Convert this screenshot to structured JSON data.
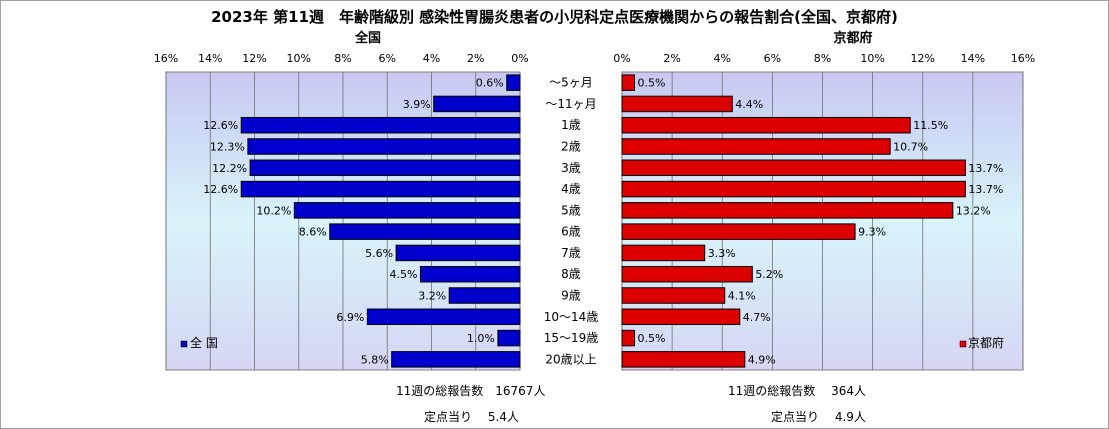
{
  "title": "2023年 第11週　年齢階級別 感染性胃腸炎患者の小児科定点医療機関からの報告割合(全国、京都府)",
  "chart_data": [
    {
      "type": "bar",
      "orientation": "horizontal",
      "direction": "right-to-left",
      "title": "全国",
      "categories": [
        "～5ヶ月",
        "～11ヶ月",
        "1歳",
        "2歳",
        "3歳",
        "4歳",
        "5歳",
        "6歳",
        "7歳",
        "8歳",
        "9歳",
        "10～14歳",
        "15～19歳",
        "20歳以上"
      ],
      "series": [
        {
          "name": "全 国",
          "color": "#0000cc",
          "values": [
            0.6,
            3.9,
            12.6,
            12.3,
            12.2,
            12.6,
            10.2,
            8.6,
            5.6,
            4.5,
            3.2,
            6.9,
            1.0,
            5.8
          ]
        }
      ],
      "value_labels": [
        "0.6%",
        "3.9%",
        "12.6%",
        "12.3%",
        "12.2%",
        "12.6%",
        "10.2%",
        "8.6%",
        "5.6%",
        "4.5%",
        "3.2%",
        "6.9%",
        "1.0%",
        "5.8%"
      ],
      "xlim": [
        0,
        16
      ],
      "ticks": [
        16,
        14,
        12,
        10,
        8,
        6,
        4,
        2,
        0
      ],
      "tick_labels": [
        "16%",
        "14%",
        "12%",
        "10%",
        "8%",
        "6%",
        "4%",
        "2%",
        "0%"
      ],
      "grid": true,
      "legend_position": "bottom-left",
      "legend_label": "全 国"
    },
    {
      "type": "bar",
      "orientation": "horizontal",
      "direction": "left-to-right",
      "title": "京都府",
      "categories": [
        "～5ヶ月",
        "～11ヶ月",
        "1歳",
        "2歳",
        "3歳",
        "4歳",
        "5歳",
        "6歳",
        "7歳",
        "8歳",
        "9歳",
        "10～14歳",
        "15～19歳",
        "20歳以上"
      ],
      "series": [
        {
          "name": "京都府",
          "color": "#dd0000",
          "values": [
            0.5,
            4.4,
            11.5,
            10.7,
            13.7,
            13.7,
            13.2,
            9.3,
            3.3,
            5.2,
            4.1,
            4.7,
            0.5,
            4.9
          ]
        }
      ],
      "value_labels": [
        "0.5%",
        "4.4%",
        "11.5%",
        "10.7%",
        "13.7%",
        "13.7%",
        "13.2%",
        "9.3%",
        "3.3%",
        "5.2%",
        "4.1%",
        "4.7%",
        "0.5%",
        "4.9%"
      ],
      "xlim": [
        0,
        16
      ],
      "ticks": [
        0,
        2,
        4,
        6,
        8,
        10,
        12,
        14,
        16
      ],
      "tick_labels": [
        "0%",
        "2%",
        "4%",
        "6%",
        "8%",
        "10%",
        "12%",
        "14%",
        "16%"
      ],
      "grid": true,
      "legend_position": "bottom-right",
      "legend_label": "京都府"
    }
  ],
  "footer": {
    "national_total": "11週の総報告数　16767人",
    "national_per_site": "定点当り　 5.4人",
    "kyoto_total": "11週の総報告数　 364人",
    "kyoto_per_site": "定点当り　 4.9人"
  }
}
